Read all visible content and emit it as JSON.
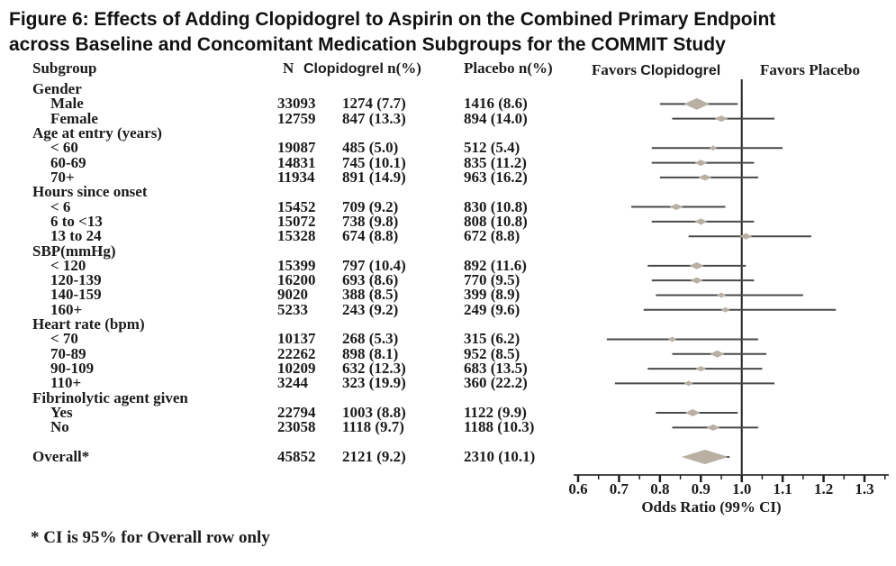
{
  "title": {
    "line1": "Figure 6: Effects of Adding Clopidogrel to Aspirin on the Combined Primary Endpoint",
    "line2": "across Baseline and Concomitant Medication Subgroups for the COMMIT Study"
  },
  "table": {
    "col_subgroup": "Subgroup",
    "col_n": "N",
    "col_clopidogrel_word": "Clopidogrel",
    "col_clopidogrel_rest": "n(%)",
    "col_placebo": "Placebo n(%)"
  },
  "plot_header": {
    "favors_left_word": "Favors",
    "favors_left_drug": "Clopidogrel",
    "favors_right": "Favors Placebo"
  },
  "footnote": "* CI is 95% for Overall row only",
  "colors": {
    "diamond": "#b9b0a3",
    "ci_line": "#4a4a4a",
    "axis_line": "#4a4a4a",
    "tick": "#1f1f1f",
    "ref_line": "#1f1f1f",
    "text": "#1c1c1c"
  },
  "chart_data": {
    "type": "scatter",
    "variant": "forest-plot",
    "title": "Effects of Adding Clopidogrel to Aspirin on the Combined Primary Endpoint across Baseline and Concomitant Medication Subgroups (COMMIT Study)",
    "xlabel": "Odds Ratio (99% CI)",
    "xlim": [
      0.6,
      1.3
    ],
    "x_tick_labels": [
      "0.6",
      "0.7",
      "0.8",
      "0.9",
      "1.0",
      "1.1",
      "1.2",
      "1.3"
    ],
    "x_ticks": [
      0.6,
      0.7,
      0.8,
      0.9,
      1.0,
      1.1,
      1.2,
      1.3
    ],
    "x_minor_ticks": [
      0.65,
      0.75,
      0.85,
      0.95,
      1.05,
      1.15,
      1.25,
      1.35
    ],
    "reference_line": 1.0,
    "rows": [
      {
        "type": "group",
        "label": "Gender"
      },
      {
        "type": "item",
        "label": "Male",
        "n": "33093",
        "clopidogrel": "1274 (7.7)",
        "placebo": "1416 (8.6)",
        "or": 0.89,
        "ci_low": 0.8,
        "ci_high": 0.99,
        "marker_size": 28
      },
      {
        "type": "item",
        "label": "Female",
        "n": "12759",
        "clopidogrel": "847 (13.3)",
        "placebo": "894 (14.0)",
        "or": 0.95,
        "ci_low": 0.83,
        "ci_high": 1.08,
        "marker_size": 15
      },
      {
        "type": "group",
        "label": "Age at entry (years)"
      },
      {
        "type": "item",
        "label": "< 60",
        "n": "19087",
        "clopidogrel": "485 (5.0)",
        "placebo": "512 (5.4)",
        "or": 0.93,
        "ci_low": 0.78,
        "ci_high": 1.1,
        "marker_size": 8
      },
      {
        "type": "item",
        "label": "60-69",
        "n": "14831",
        "clopidogrel": "745 (10.1)",
        "placebo": "835 (11.2)",
        "or": 0.9,
        "ci_low": 0.78,
        "ci_high": 1.03,
        "marker_size": 14
      },
      {
        "type": "item",
        "label": "70+",
        "n": "11934",
        "clopidogrel": "891 (14.9)",
        "placebo": "963 (16.2)",
        "or": 0.91,
        "ci_low": 0.8,
        "ci_high": 1.04,
        "marker_size": 15
      },
      {
        "type": "group",
        "label": "Hours since onset"
      },
      {
        "type": "item",
        "label": "< 6",
        "n": "15452",
        "clopidogrel": "709 (9.2)",
        "placebo": "830 (10.8)",
        "or": 0.84,
        "ci_low": 0.73,
        "ci_high": 0.96,
        "marker_size": 15
      },
      {
        "type": "item",
        "label": "6 to <13",
        "n": "15072",
        "clopidogrel": "738 (9.8)",
        "placebo": "808 (10.8)",
        "or": 0.9,
        "ci_low": 0.78,
        "ci_high": 1.03,
        "marker_size": 14
      },
      {
        "type": "item",
        "label": "13 to 24",
        "n": "15328",
        "clopidogrel": "674 (8.8)",
        "placebo": "672 (8.8)",
        "or": 1.01,
        "ci_low": 0.87,
        "ci_high": 1.17,
        "marker_size": 14
      },
      {
        "type": "group",
        "label": "SBP(mmHg)"
      },
      {
        "type": "item",
        "label": "< 120",
        "n": "15399",
        "clopidogrel": "797 (10.4)",
        "placebo": "892 (11.6)",
        "or": 0.89,
        "ci_low": 0.77,
        "ci_high": 1.01,
        "marker_size": 16
      },
      {
        "type": "item",
        "label": "120-139",
        "n": "16200",
        "clopidogrel": "693 (8.6)",
        "placebo": "770 (9.5)",
        "or": 0.89,
        "ci_low": 0.78,
        "ci_high": 1.03,
        "marker_size": 14
      },
      {
        "type": "item",
        "label": "140-159",
        "n": "9020",
        "clopidogrel": "388 (8.5)",
        "placebo": "399 (8.9)",
        "or": 0.95,
        "ci_low": 0.79,
        "ci_high": 1.15,
        "marker_size": 10
      },
      {
        "type": "item",
        "label": "160+",
        "n": "5233",
        "clopidogrel": "243 (9.2)",
        "placebo": "249 (9.6)",
        "or": 0.96,
        "ci_low": 0.76,
        "ci_high": 1.23,
        "marker_size": 10
      },
      {
        "type": "group",
        "label": "Heart rate (bpm)"
      },
      {
        "type": "item",
        "label": "< 70",
        "n": "10137",
        "clopidogrel": "268 (5.3)",
        "placebo": "315 (6.2)",
        "or": 0.83,
        "ci_low": 0.67,
        "ci_high": 1.04,
        "marker_size": 9
      },
      {
        "type": "item",
        "label": "70-89",
        "n": "22262",
        "clopidogrel": "898 (8.1)",
        "placebo": "952 (8.5)",
        "or": 0.94,
        "ci_low": 0.83,
        "ci_high": 1.06,
        "marker_size": 16
      },
      {
        "type": "item",
        "label": "90-109",
        "n": "10209",
        "clopidogrel": "632 (12.3)",
        "placebo": "683 (13.5)",
        "or": 0.9,
        "ci_low": 0.77,
        "ci_high": 1.05,
        "marker_size": 12
      },
      {
        "type": "item",
        "label": "110+",
        "n": "3244",
        "clopidogrel": "323 (19.9)",
        "placebo": "360 (22.2)",
        "or": 0.87,
        "ci_low": 0.69,
        "ci_high": 1.08,
        "marker_size": 10
      },
      {
        "type": "group",
        "label": "Fibrinolytic agent given"
      },
      {
        "type": "item",
        "label": "Yes",
        "n": "22794",
        "clopidogrel": "1003 (8.8)",
        "placebo": "1122 (9.9)",
        "or": 0.88,
        "ci_low": 0.79,
        "ci_high": 0.99,
        "marker_size": 17
      },
      {
        "type": "item",
        "label": "No",
        "n": "23058",
        "clopidogrel": "1118 (9.7)",
        "placebo": "1188 (10.3)",
        "or": 0.93,
        "ci_low": 0.83,
        "ci_high": 1.04,
        "marker_size": 15
      },
      {
        "type": "spacer"
      },
      {
        "type": "overall",
        "label": "Overall*",
        "n": "45852",
        "clopidogrel": "2121 (9.2)",
        "placebo": "2310 (10.1)",
        "or": 0.91,
        "ci_low": 0.86,
        "ci_high": 0.97,
        "marker_size": 52
      }
    ]
  }
}
